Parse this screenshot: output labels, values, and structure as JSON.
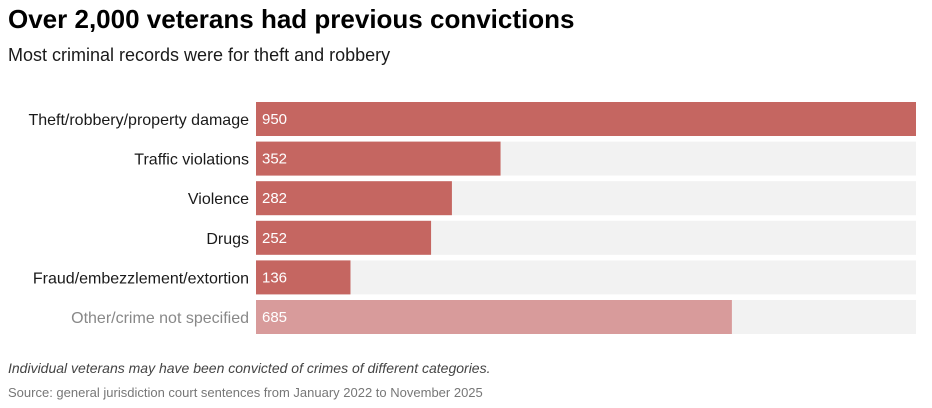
{
  "chart_data": {
    "type": "bar",
    "orientation": "horizontal",
    "title": "Over 2,000 veterans had previous convictions",
    "subtitle": "Most criminal records were for theft and robbery",
    "categories": [
      "Theft/robbery/property damage",
      "Traffic violations",
      "Violence",
      "Drugs",
      "Fraud/embezzlement/extortion",
      "Other/crime not specified"
    ],
    "values": [
      950,
      352,
      282,
      252,
      136,
      685
    ],
    "xlim": [
      0,
      950
    ],
    "highlight": [
      true,
      true,
      true,
      true,
      true,
      false
    ],
    "note": "Individual veterans may have been convicted of crimes of different categories.",
    "source": "Source: general jurisdiction court sentences from January 2022 to November 2025",
    "colors": {
      "bar": "#c56661",
      "bar_muted": "#d89b9b",
      "track": "#f2f2f2",
      "label": "#1a1a1a",
      "label_muted": "#888888",
      "value_text": "#ffffff"
    }
  }
}
